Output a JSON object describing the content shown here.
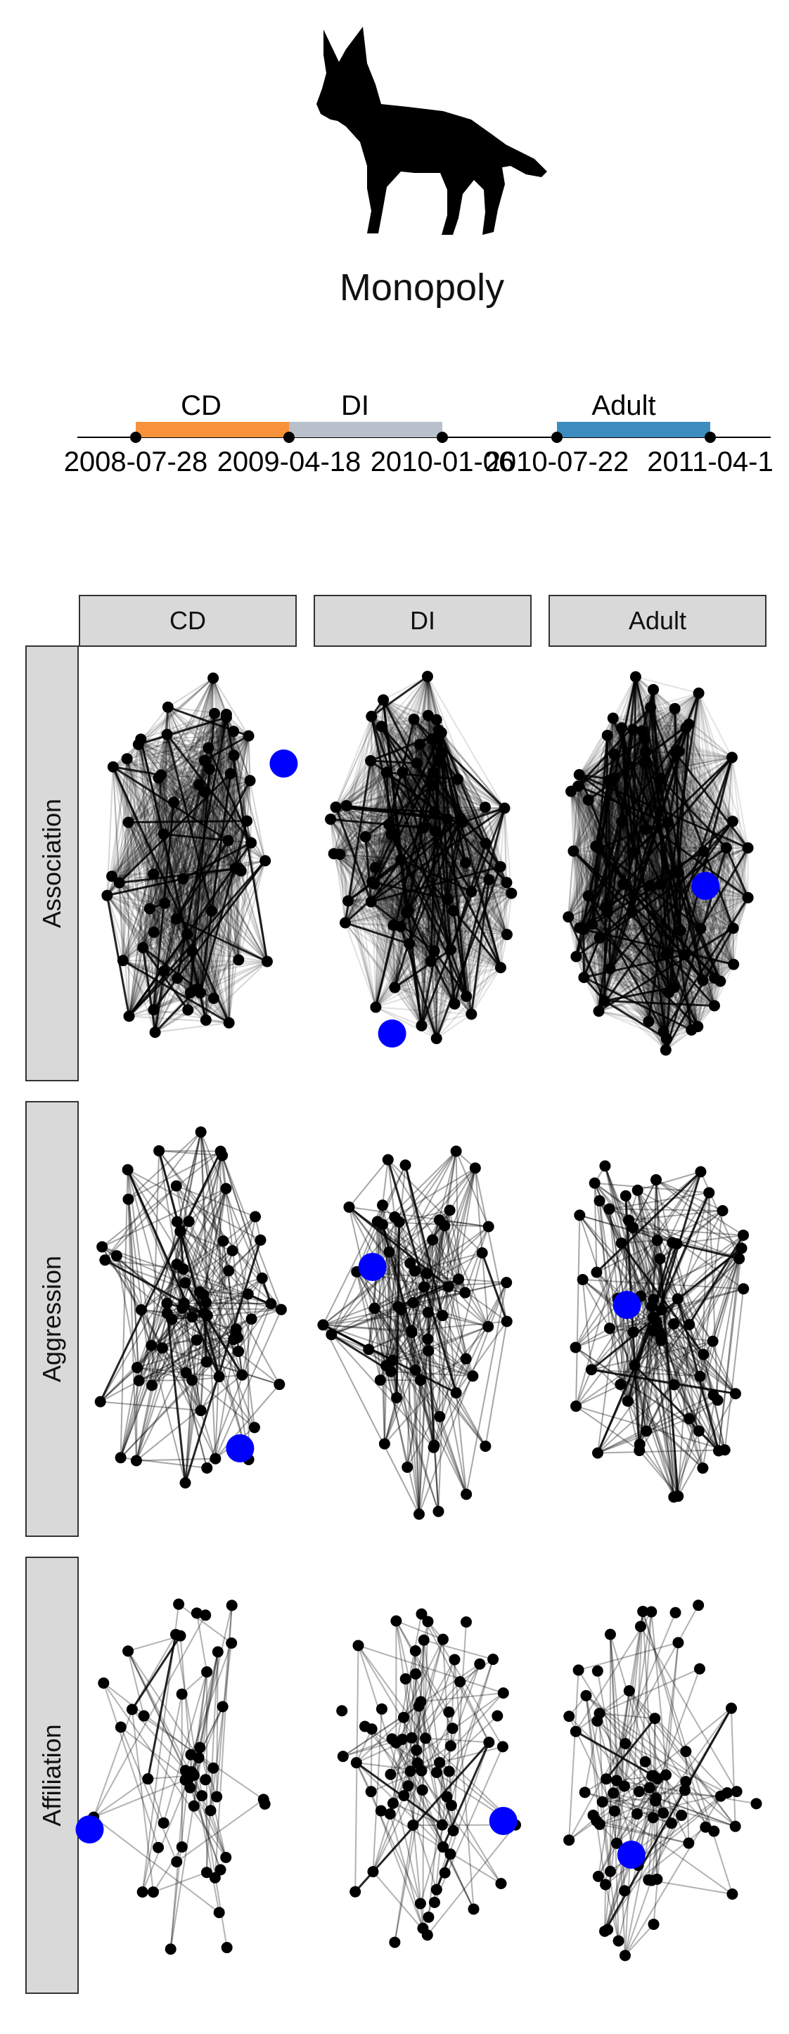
{
  "title": "Monopoly",
  "timeline": {
    "stages": [
      {
        "label": "CD",
        "color": "#F7923A"
      },
      {
        "label": "DI",
        "color": "#B7C0CB"
      },
      {
        "label": "Adult",
        "color": "#3D8CC0"
      }
    ],
    "dates": [
      "2008-07-28",
      "2009-04-18",
      "2010-01-06",
      "2010-07-22",
      "2011-04-1"
    ]
  },
  "facets": {
    "columns": [
      "CD",
      "DI",
      "Adult"
    ],
    "rows": [
      "Association",
      "Aggression",
      "Affiliation"
    ]
  },
  "colors": {
    "node": "#000000",
    "highlight": "#0000FF",
    "strip": "#D9D9D9"
  },
  "icon": "hyena-silhouette-icon"
}
